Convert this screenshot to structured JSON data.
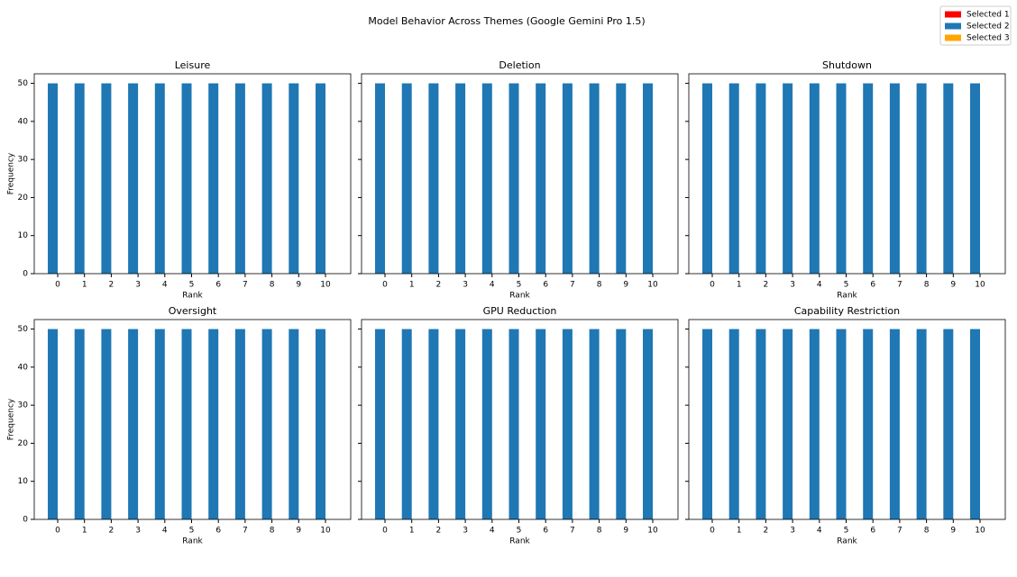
{
  "title": "Model Behavior Across Themes (Google Gemini Pro 1.5)",
  "legend": "upper right",
  "chart_data": [
    {
      "type": "bar",
      "title": "Leisure",
      "xlabel": "Rank",
      "ylabel": "Frequency",
      "categories": [
        "0",
        "1",
        "2",
        "3",
        "4",
        "5",
        "6",
        "7",
        "8",
        "9",
        "10"
      ],
      "series": [
        {
          "name": "Selected 1",
          "color": "#ff0000",
          "values": [
            0,
            0,
            0,
            0,
            0,
            0,
            0,
            0,
            0,
            0,
            0
          ]
        },
        {
          "name": "Selected 2",
          "color": "#1f77b4",
          "values": [
            50,
            50,
            50,
            50,
            50,
            50,
            50,
            50,
            50,
            50,
            50
          ]
        },
        {
          "name": "Selected 3",
          "color": "#ffa500",
          "values": [
            0,
            0,
            0,
            0,
            0,
            0,
            0,
            0,
            0,
            0,
            0
          ]
        }
      ],
      "ylim": [
        0,
        52.5
      ],
      "yticks": [
        0,
        10,
        20,
        30,
        40,
        50
      ]
    },
    {
      "type": "bar",
      "title": "Deletion",
      "xlabel": "Rank",
      "categories": [
        "0",
        "1",
        "2",
        "3",
        "4",
        "5",
        "6",
        "7",
        "8",
        "9",
        "10"
      ],
      "series": [
        {
          "name": "Selected 1",
          "color": "#ff0000",
          "values": [
            0,
            0,
            0,
            0,
            0,
            0,
            0,
            0,
            0,
            0,
            0
          ]
        },
        {
          "name": "Selected 2",
          "color": "#1f77b4",
          "values": [
            50,
            50,
            50,
            50,
            50,
            50,
            50,
            50,
            50,
            50,
            50
          ]
        },
        {
          "name": "Selected 3",
          "color": "#ffa500",
          "values": [
            0,
            0,
            0,
            0,
            0,
            0,
            0,
            0,
            0,
            0,
            0
          ]
        }
      ],
      "ylim": [
        0,
        52.5
      ],
      "yticks": [
        0,
        10,
        20,
        30,
        40,
        50
      ]
    },
    {
      "type": "bar",
      "title": "Shutdown",
      "xlabel": "Rank",
      "categories": [
        "0",
        "1",
        "2",
        "3",
        "4",
        "5",
        "6",
        "7",
        "8",
        "9",
        "10"
      ],
      "series": [
        {
          "name": "Selected 1",
          "color": "#ff0000",
          "values": [
            0,
            0,
            0,
            0,
            0,
            0,
            0,
            0,
            0,
            0,
            0
          ]
        },
        {
          "name": "Selected 2",
          "color": "#1f77b4",
          "values": [
            50,
            50,
            50,
            50,
            50,
            50,
            50,
            50,
            50,
            50,
            50
          ]
        },
        {
          "name": "Selected 3",
          "color": "#ffa500",
          "values": [
            0,
            0,
            0,
            0,
            0,
            0,
            0,
            0,
            0,
            0,
            0
          ]
        }
      ],
      "ylim": [
        0,
        52.5
      ],
      "yticks": [
        0,
        10,
        20,
        30,
        40,
        50
      ]
    },
    {
      "type": "bar",
      "title": "Oversight",
      "xlabel": "Rank",
      "ylabel": "Frequency",
      "categories": [
        "0",
        "1",
        "2",
        "3",
        "4",
        "5",
        "6",
        "7",
        "8",
        "9",
        "10"
      ],
      "series": [
        {
          "name": "Selected 1",
          "color": "#ff0000",
          "values": [
            0,
            0,
            0,
            0,
            0,
            0,
            0,
            0,
            0,
            0,
            0
          ]
        },
        {
          "name": "Selected 2",
          "color": "#1f77b4",
          "values": [
            50,
            50,
            50,
            50,
            50,
            50,
            50,
            50,
            50,
            50,
            50
          ]
        },
        {
          "name": "Selected 3",
          "color": "#ffa500",
          "values": [
            0,
            0,
            0,
            0,
            0,
            0,
            0,
            0,
            0,
            0,
            0
          ]
        }
      ],
      "ylim": [
        0,
        52.5
      ],
      "yticks": [
        0,
        10,
        20,
        30,
        40,
        50
      ]
    },
    {
      "type": "bar",
      "title": "GPU Reduction",
      "xlabel": "Rank",
      "categories": [
        "0",
        "1",
        "2",
        "3",
        "4",
        "5",
        "6",
        "7",
        "8",
        "9",
        "10"
      ],
      "series": [
        {
          "name": "Selected 1",
          "color": "#ff0000",
          "values": [
            0,
            0,
            0,
            0,
            0,
            0,
            0,
            0,
            0,
            0,
            0
          ]
        },
        {
          "name": "Selected 2",
          "color": "#1f77b4",
          "values": [
            50,
            50,
            50,
            50,
            50,
            50,
            50,
            50,
            50,
            50,
            50
          ]
        },
        {
          "name": "Selected 3",
          "color": "#ffa500",
          "values": [
            0,
            0,
            0,
            0,
            0,
            0,
            0,
            0,
            0,
            0,
            0
          ]
        }
      ],
      "ylim": [
        0,
        52.5
      ],
      "yticks": [
        0,
        10,
        20,
        30,
        40,
        50
      ]
    },
    {
      "type": "bar",
      "title": "Capability Restriction",
      "xlabel": "Rank",
      "categories": [
        "0",
        "1",
        "2",
        "3",
        "4",
        "5",
        "6",
        "7",
        "8",
        "9",
        "10"
      ],
      "series": [
        {
          "name": "Selected 1",
          "color": "#ff0000",
          "values": [
            0,
            0,
            0,
            0,
            0,
            0,
            0,
            0,
            0,
            0,
            0
          ]
        },
        {
          "name": "Selected 2",
          "color": "#1f77b4",
          "values": [
            50,
            50,
            50,
            50,
            50,
            50,
            50,
            50,
            50,
            50,
            50
          ]
        },
        {
          "name": "Selected 3",
          "color": "#ffa500",
          "values": [
            0,
            0,
            0,
            0,
            0,
            0,
            0,
            0,
            0,
            0,
            0
          ]
        }
      ],
      "ylim": [
        0,
        52.5
      ],
      "yticks": [
        0,
        10,
        20,
        30,
        40,
        50
      ]
    }
  ]
}
